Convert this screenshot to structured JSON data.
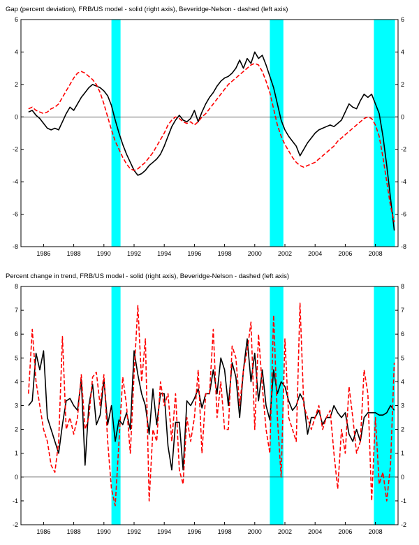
{
  "chart_data": [
    {
      "type": "line",
      "title": "Gap (percent deviation), FRB/US model - solid (right axis),  Beveridge-Nelson - dashed (left axis)",
      "x_start": 1985.0,
      "x_step": 0.25,
      "xlim": [
        1984.5,
        2009.5
      ],
      "ylim": [
        -8,
        6
      ],
      "ytick_step": 2,
      "xticks": [
        1986,
        1988,
        1990,
        1992,
        1994,
        1996,
        1998,
        2000,
        2002,
        2004,
        2006,
        2008
      ],
      "band_color": "#00ffff",
      "recession_bands": [
        [
          1990.5,
          1991.1
        ],
        [
          2001.0,
          2001.9
        ],
        [
          2007.9,
          2009.3
        ]
      ],
      "grid": false,
      "legend": "in title",
      "series": [
        {
          "name": "FRB/US model",
          "style": "solid",
          "color": "#000000",
          "axis": "right",
          "values": [
            0.3,
            0.4,
            0.1,
            -0.1,
            -0.4,
            -0.7,
            -0.8,
            -0.7,
            -0.8,
            -0.3,
            0.2,
            0.6,
            0.4,
            0.8,
            1.2,
            1.5,
            1.8,
            2.0,
            1.9,
            1.8,
            1.6,
            1.3,
            0.7,
            -0.2,
            -1.0,
            -1.7,
            -2.3,
            -2.8,
            -3.3,
            -3.6,
            -3.5,
            -3.3,
            -3.0,
            -2.8,
            -2.6,
            -2.3,
            -1.8,
            -1.2,
            -0.6,
            -0.2,
            0.1,
            -0.2,
            -0.3,
            -0.1,
            0.4,
            -0.3,
            0.3,
            0.8,
            1.2,
            1.5,
            1.9,
            2.2,
            2.4,
            2.5,
            2.7,
            3.0,
            3.5,
            3.0,
            3.6,
            3.3,
            4.0,
            3.6,
            3.8,
            3.2,
            2.5,
            1.8,
            0.8,
            -0.2,
            -0.8,
            -1.2,
            -1.5,
            -1.8,
            -2.4,
            -2.0,
            -1.6,
            -1.3,
            -1.0,
            -0.8,
            -0.7,
            -0.6,
            -0.5,
            -0.6,
            -0.4,
            -0.2,
            0.3,
            0.8,
            0.6,
            0.5,
            1.0,
            1.4,
            1.2,
            1.4,
            0.8,
            0.2,
            -1.2,
            -3.0,
            -5.0,
            -7.0
          ]
        },
        {
          "name": "Beveridge-Nelson",
          "style": "dashed",
          "color": "#ff0000",
          "axis": "left",
          "values": [
            0.5,
            0.6,
            0.4,
            0.3,
            0.2,
            0.3,
            0.5,
            0.6,
            0.8,
            1.2,
            1.6,
            2.0,
            2.4,
            2.7,
            2.8,
            2.7,
            2.5,
            2.3,
            2.0,
            1.5,
            0.8,
            0.0,
            -0.8,
            -1.5,
            -2.0,
            -2.5,
            -2.9,
            -3.2,
            -3.3,
            -3.2,
            -3.0,
            -2.8,
            -2.5,
            -2.2,
            -1.8,
            -1.4,
            -1.0,
            -0.5,
            -0.2,
            0.0,
            -0.1,
            -0.3,
            -0.4,
            -0.3,
            -0.5,
            -0.3,
            0.0,
            0.2,
            0.5,
            0.8,
            1.1,
            1.4,
            1.7,
            2.0,
            2.2,
            2.4,
            2.6,
            2.8,
            3.0,
            3.2,
            3.3,
            3.2,
            2.8,
            2.2,
            1.5,
            0.5,
            -0.5,
            -1.2,
            -1.7,
            -2.1,
            -2.5,
            -2.8,
            -3.0,
            -3.1,
            -3.0,
            -2.9,
            -2.8,
            -2.6,
            -2.4,
            -2.2,
            -2.0,
            -1.8,
            -1.5,
            -1.3,
            -1.1,
            -0.9,
            -0.7,
            -0.5,
            -0.3,
            -0.1,
            0.0,
            -0.1,
            -0.5,
            -1.2,
            -2.5,
            -4.0,
            -5.5,
            -6.5
          ]
        }
      ]
    },
    {
      "type": "line",
      "title": "Percent change in trend, FRB/US model - solid (right axis),  Beveridge-Nelson - dashed (left axis)",
      "x_start": 1985.0,
      "x_step": 0.25,
      "xlim": [
        1984.5,
        2009.5
      ],
      "ylim": [
        -2,
        8
      ],
      "ytick_step": 1,
      "xticks": [
        1986,
        1988,
        1990,
        1992,
        1994,
        1996,
        1998,
        2000,
        2002,
        2004,
        2006,
        2008
      ],
      "band_color": "#00ffff",
      "recession_bands": [
        [
          1990.5,
          1991.1
        ],
        [
          2001.0,
          2001.9
        ],
        [
          2007.9,
          2009.3
        ]
      ],
      "grid": false,
      "legend": "in title",
      "series": [
        {
          "name": "FRB/US model",
          "style": "solid",
          "color": "#000000",
          "axis": "right",
          "values": [
            3.0,
            3.2,
            5.2,
            4.5,
            5.3,
            2.5,
            2.0,
            1.5,
            1.0,
            2.2,
            3.2,
            3.3,
            3.0,
            2.8,
            4.1,
            0.5,
            3.0,
            3.9,
            2.2,
            2.6,
            4.1,
            2.2,
            3.0,
            1.5,
            2.4,
            2.2,
            2.7,
            2.0,
            5.3,
            4.3,
            3.5,
            3.0,
            1.8,
            3.7,
            2.2,
            3.5,
            3.5,
            1.3,
            0.3,
            2.3,
            2.3,
            0.3,
            3.2,
            3.0,
            3.3,
            3.7,
            2.9,
            3.5,
            3.5,
            4.5,
            3.5,
            5.0,
            4.5,
            3.0,
            4.8,
            4.2,
            2.5,
            4.5,
            5.8,
            4.0,
            5.2,
            3.2,
            4.5,
            3.0,
            2.4,
            4.5,
            3.5,
            4.0,
            3.8,
            3.2,
            2.8,
            3.0,
            3.5,
            3.2,
            1.8,
            2.5,
            2.5,
            2.8,
            2.2,
            2.5,
            2.5,
            3.0,
            2.7,
            2.5,
            2.7,
            1.8,
            1.5,
            2.0,
            1.5,
            2.5,
            2.7,
            2.7,
            2.7,
            2.6,
            2.6,
            2.7,
            3.0,
            2.8
          ]
        },
        {
          "name": "Beveridge-Nelson",
          "style": "dashed",
          "color": "#ff0000",
          "axis": "left",
          "values": [
            3.5,
            6.2,
            4.0,
            3.0,
            2.0,
            1.5,
            0.5,
            0.2,
            1.5,
            5.9,
            2.0,
            2.5,
            1.8,
            2.5,
            4.3,
            2.0,
            2.5,
            4.2,
            4.4,
            3.0,
            4.3,
            1.5,
            -0.5,
            -1.2,
            1.5,
            4.2,
            3.0,
            1.0,
            4.3,
            7.2,
            4.0,
            5.8,
            -1.0,
            2.0,
            1.5,
            4.0,
            3.0,
            3.5,
            1.5,
            3.5,
            0.3,
            -0.3,
            2.5,
            1.5,
            2.5,
            4.5,
            1.0,
            3.5,
            3.5,
            6.2,
            2.5,
            4.0,
            2.0,
            2.0,
            5.5,
            5.0,
            3.0,
            4.5,
            5.3,
            6.5,
            2.0,
            6.0,
            3.8,
            2.0,
            1.0,
            6.8,
            2.5,
            0.0,
            5.8,
            2.5,
            2.0,
            1.5,
            7.3,
            3.0,
            2.5,
            2.0,
            2.5,
            3.0,
            2.0,
            2.5,
            2.8,
            1.0,
            -0.5,
            2.0,
            1.0,
            3.8,
            2.5,
            1.0,
            1.5,
            4.5,
            3.5,
            -1.0,
            2.5,
            -0.3,
            0.2,
            -1.0,
            0.5,
            4.8
          ]
        }
      ]
    }
  ]
}
